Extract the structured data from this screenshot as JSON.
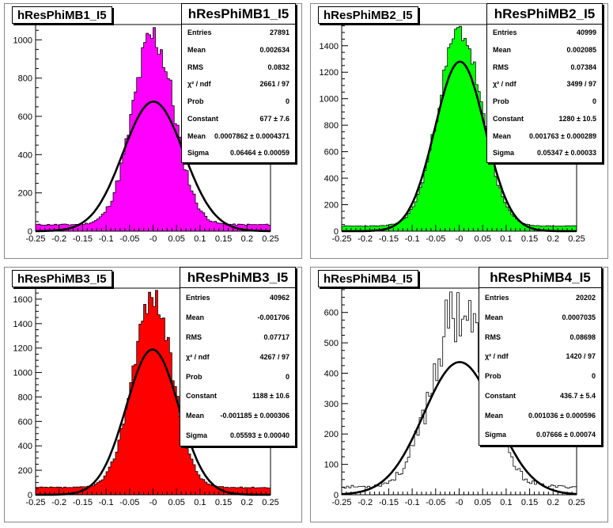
{
  "pads": [
    {
      "name": "hResPhiMB1_I5",
      "fill": "#ff00ff",
      "stats": [
        {
          "label": "Entries",
          "value": "27891"
        },
        {
          "label": "Mean",
          "value": "0.002634"
        },
        {
          "label": "RMS",
          "value": "0.0832"
        },
        {
          "label": "χ² / ndf",
          "value": "2661 / 97"
        },
        {
          "label": "Prob",
          "value": "0"
        },
        {
          "label": "Constant",
          "value": "677 ± 7.6"
        },
        {
          "label": "Mean",
          "value": "0.0007862 ± 0.0004371"
        },
        {
          "label": "Sigma",
          "value": "0.06464 ± 0.00059"
        }
      ],
      "yticks": [
        "0",
        "200",
        "400",
        "600",
        "800",
        "1000"
      ]
    },
    {
      "name": "hResPhiMB2_I5",
      "fill": "#00ff00",
      "stats": [
        {
          "label": "Entries",
          "value": "40999"
        },
        {
          "label": "Mean",
          "value": "0.002085"
        },
        {
          "label": "RMS",
          "value": "0.07384"
        },
        {
          "label": "χ² / ndf",
          "value": "3499 / 97"
        },
        {
          "label": "Prob",
          "value": "0"
        },
        {
          "label": "Constant",
          "value": "1280 ± 10.5"
        },
        {
          "label": "Mean",
          "value": "0.001763 ± 0.000289"
        },
        {
          "label": "Sigma",
          "value": "0.05347 ± 0.00033"
        }
      ],
      "yticks": [
        "0",
        "200",
        "400",
        "600",
        "800",
        "1000",
        "1200",
        "1400"
      ]
    },
    {
      "name": "hResPhiMB3_I5",
      "fill": "#ff0000",
      "stats": [
        {
          "label": "Entries",
          "value": "40962"
        },
        {
          "label": "Mean",
          "value": "-0.001706"
        },
        {
          "label": "RMS",
          "value": "0.07717"
        },
        {
          "label": "χ² / ndf",
          "value": "4267 / 97"
        },
        {
          "label": "Prob",
          "value": "0"
        },
        {
          "label": "Constant",
          "value": "1188 ± 10.6"
        },
        {
          "label": "Mean",
          "value": "-0.001185 ± 0.000306"
        },
        {
          "label": "Sigma",
          "value": "0.05593 ± 0.00040"
        }
      ],
      "yticks": [
        "0",
        "200",
        "400",
        "600",
        "800",
        "1000",
        "1200",
        "1400",
        "1600"
      ]
    },
    {
      "name": "hResPhiMB4_I5",
      "fill": "none",
      "stats": [
        {
          "label": "Entries",
          "value": "20202"
        },
        {
          "label": "Mean",
          "value": "0.0007035"
        },
        {
          "label": "RMS",
          "value": "0.08698"
        },
        {
          "label": "χ² / ndf",
          "value": "1420 / 97"
        },
        {
          "label": "Prob",
          "value": "0"
        },
        {
          "label": "Constant",
          "value": "436.7 ± 5.4"
        },
        {
          "label": "Mean",
          "value": "0.001036 ± 0.000596"
        },
        {
          "label": "Sigma",
          "value": "0.07666 ± 0.00074"
        }
      ],
      "yticks": [
        "0",
        "100",
        "200",
        "300",
        "400",
        "500",
        "600"
      ]
    }
  ],
  "xticks": [
    "-0.25",
    "-0.2",
    "-0.15",
    "-0.1",
    "-0.05",
    "-0",
    "0.05",
    "0.1",
    "0.15",
    "0.2",
    "0.25"
  ],
  "chart_data": [
    {
      "type": "bar",
      "title": "hResPhiMB1_I5",
      "xlim": [
        -0.25,
        0.25
      ],
      "ylim": [
        0,
        1080
      ],
      "gauss": {
        "constant": 677,
        "mean": 0.0007862,
        "sigma": 0.06464
      }
    },
    {
      "type": "bar",
      "title": "hResPhiMB2_I5",
      "xlim": [
        -0.25,
        0.25
      ],
      "ylim": [
        0,
        1560
      ],
      "gauss": {
        "constant": 1280,
        "mean": 0.001763,
        "sigma": 0.05347
      }
    },
    {
      "type": "bar",
      "title": "hResPhiMB3_I5",
      "xlim": [
        -0.25,
        0.25
      ],
      "ylim": [
        0,
        1690
      ],
      "gauss": {
        "constant": 1188,
        "mean": -0.001185,
        "sigma": 0.05593
      }
    },
    {
      "type": "bar",
      "title": "hResPhiMB4_I5",
      "xlim": [
        -0.25,
        0.25
      ],
      "ylim": [
        0,
        680
      ],
      "gauss": {
        "constant": 436.7,
        "mean": 0.001036,
        "sigma": 0.07666
      }
    }
  ]
}
